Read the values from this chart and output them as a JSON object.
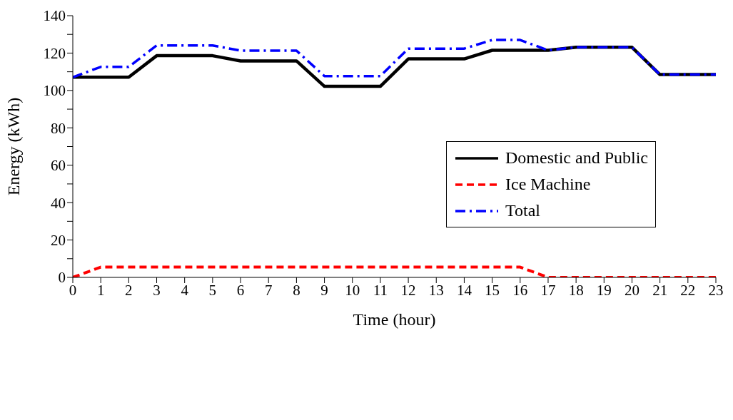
{
  "chart_data": {
    "type": "line",
    "xlabel": "Time (hour)",
    "ylabel": "Energy (kWh)",
    "x": [
      0,
      1,
      2,
      3,
      4,
      5,
      6,
      7,
      8,
      9,
      10,
      11,
      12,
      13,
      14,
      15,
      16,
      17,
      18,
      19,
      20,
      21,
      22,
      23
    ],
    "xlim": [
      0,
      23
    ],
    "xticks": [
      0,
      1,
      2,
      3,
      4,
      5,
      6,
      7,
      8,
      9,
      10,
      11,
      12,
      13,
      14,
      15,
      16,
      17,
      18,
      19,
      20,
      21,
      22,
      23
    ],
    "ylim": [
      0,
      140
    ],
    "yticks": [
      0,
      {
        "value": 10,
        "label": null
      },
      20,
      {
        "value": 30,
        "label": null
      },
      40,
      {
        "value": 50,
        "label": null
      },
      60,
      {
        "value": 70,
        "label": null
      },
      80,
      {
        "value": 90,
        "label": null
      },
      100,
      {
        "value": 110,
        "label": null
      },
      120,
      {
        "value": 130,
        "label": null
      },
      140
    ],
    "legend": "right",
    "marker": "none",
    "series": [
      {
        "name": "Domestic and Public",
        "color": "#000000",
        "line_style": "solid",
        "values": [
          107.1,
          107.1,
          107.1,
          118.6,
          118.6,
          118.6,
          115.8,
          115.8,
          115.8,
          102.2,
          102.2,
          102.2,
          116.9,
          116.9,
          116.9,
          121.5,
          121.5,
          121.5,
          123.1,
          123.1,
          123.1,
          108.5,
          108.5,
          108.5
        ]
      },
      {
        "name": "Ice Machine",
        "color": "#ff0000",
        "line_style": "dashed",
        "values": [
          0,
          5.5,
          5.5,
          5.5,
          5.5,
          5.5,
          5.5,
          5.5,
          5.5,
          5.5,
          5.5,
          5.5,
          5.5,
          5.5,
          5.5,
          5.5,
          5.5,
          0,
          0,
          0,
          0,
          0,
          0,
          0
        ]
      },
      {
        "name": "Total",
        "color": "#0000ff",
        "line_style": "dashdot",
        "values": [
          107.1,
          112.6,
          112.6,
          124.1,
          124.1,
          124.1,
          121.3,
          121.3,
          121.3,
          107.7,
          107.7,
          107.7,
          122.4,
          122.4,
          122.4,
          127,
          127,
          121.5,
          123.1,
          123.1,
          123.1,
          108.5,
          108.5,
          108.5
        ]
      }
    ]
  }
}
